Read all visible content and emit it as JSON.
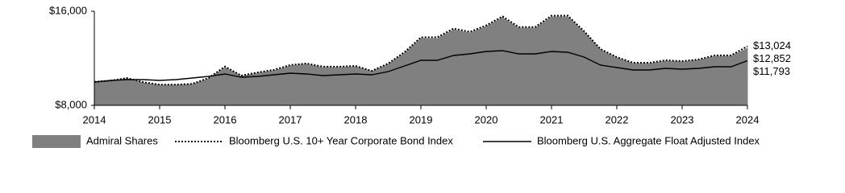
{
  "chart_data": {
    "type": "line",
    "x": [
      2014,
      2014.25,
      2014.5,
      2014.75,
      2015,
      2015.25,
      2015.5,
      2015.75,
      2016,
      2016.25,
      2016.5,
      2016.75,
      2017,
      2017.25,
      2017.5,
      2017.75,
      2018,
      2018.25,
      2018.5,
      2018.75,
      2019,
      2019.25,
      2019.5,
      2019.75,
      2020,
      2020.25,
      2020.5,
      2020.75,
      2021,
      2021.25,
      2021.5,
      2021.75,
      2022,
      2022.25,
      2022.5,
      2022.75,
      2023,
      2023.25,
      2023.5,
      2023.75,
      2024
    ],
    "xlim": [
      2014,
      2024
    ],
    "xticks": [
      2014,
      2015,
      2016,
      2017,
      2018,
      2019,
      2020,
      2021,
      2022,
      2023,
      2024
    ],
    "ylim": [
      8000,
      16000
    ],
    "yticks": [
      {
        "value": 8000,
        "label": "$8,000"
      },
      {
        "value": 16000,
        "label": "$16,000"
      }
    ],
    "series": [
      {
        "name": "Admiral Shares",
        "style": "area",
        "color": "#808080",
        "values": [
          9983,
          10051,
          10256,
          9915,
          9709,
          9709,
          9778,
          10256,
          11214,
          10462,
          10735,
          10940,
          11350,
          11487,
          11214,
          11214,
          11282,
          10872,
          11487,
          12444,
          13675,
          13675,
          14427,
          14154,
          14701,
          15453,
          14564,
          14564,
          15521,
          15521,
          14222,
          12718,
          12034,
          11556,
          11556,
          11761,
          11692,
          11829,
          12171,
          12171,
          12852
        ],
        "value_labels": [
          null,
          null,
          null,
          null,
          null,
          null,
          null,
          null,
          null,
          null,
          null,
          null,
          null,
          null,
          null,
          null,
          null,
          null,
          null,
          null,
          null,
          null,
          null,
          null,
          null,
          null,
          null,
          null,
          null,
          null,
          null,
          null,
          null,
          null,
          null,
          null,
          null,
          null,
          null,
          null,
          "$12,852"
        ]
      },
      {
        "name": "Bloomberg U.S. 10+ Year Corporate Bond Index",
        "style": "dotted",
        "color": "#000000",
        "values": [
          10000,
          10100,
          10320,
          9970,
          9760,
          9760,
          9830,
          10330,
          11300,
          10530,
          10800,
          11020,
          11430,
          11560,
          11290,
          11290,
          11350,
          10930,
          11560,
          12530,
          13780,
          13790,
          14530,
          14250,
          14800,
          15560,
          14660,
          14660,
          15620,
          15620,
          14300,
          12790,
          12100,
          11620,
          11620,
          11830,
          11760,
          11900,
          12250,
          12250,
          13024
        ],
        "value_labels": [
          null,
          null,
          null,
          null,
          null,
          null,
          null,
          null,
          null,
          null,
          null,
          null,
          null,
          null,
          null,
          null,
          null,
          null,
          null,
          null,
          null,
          null,
          null,
          null,
          null,
          null,
          null,
          null,
          null,
          null,
          null,
          null,
          null,
          null,
          null,
          null,
          null,
          null,
          null,
          null,
          "$13,024"
        ]
      },
      {
        "name": "Bloomberg U.S. Aggregate Float Adjusted Index",
        "style": "solid",
        "color": "#000000",
        "values": [
          9983,
          10120,
          10188,
          10188,
          10120,
          10188,
          10325,
          10462,
          10667,
          10393,
          10462,
          10598,
          10735,
          10667,
          10530,
          10598,
          10667,
          10598,
          10872,
          11350,
          11829,
          11829,
          12239,
          12376,
          12581,
          12650,
          12376,
          12376,
          12581,
          12513,
          12103,
          11419,
          11214,
          11009,
          11009,
          11145,
          11077,
          11145,
          11282,
          11282,
          11793
        ],
        "value_labels": [
          null,
          null,
          null,
          null,
          null,
          null,
          null,
          null,
          null,
          null,
          null,
          null,
          null,
          null,
          null,
          null,
          null,
          null,
          null,
          null,
          null,
          null,
          null,
          null,
          null,
          null,
          null,
          null,
          null,
          null,
          null,
          null,
          null,
          null,
          null,
          null,
          null,
          null,
          null,
          null,
          "$11,793"
        ]
      }
    ]
  }
}
